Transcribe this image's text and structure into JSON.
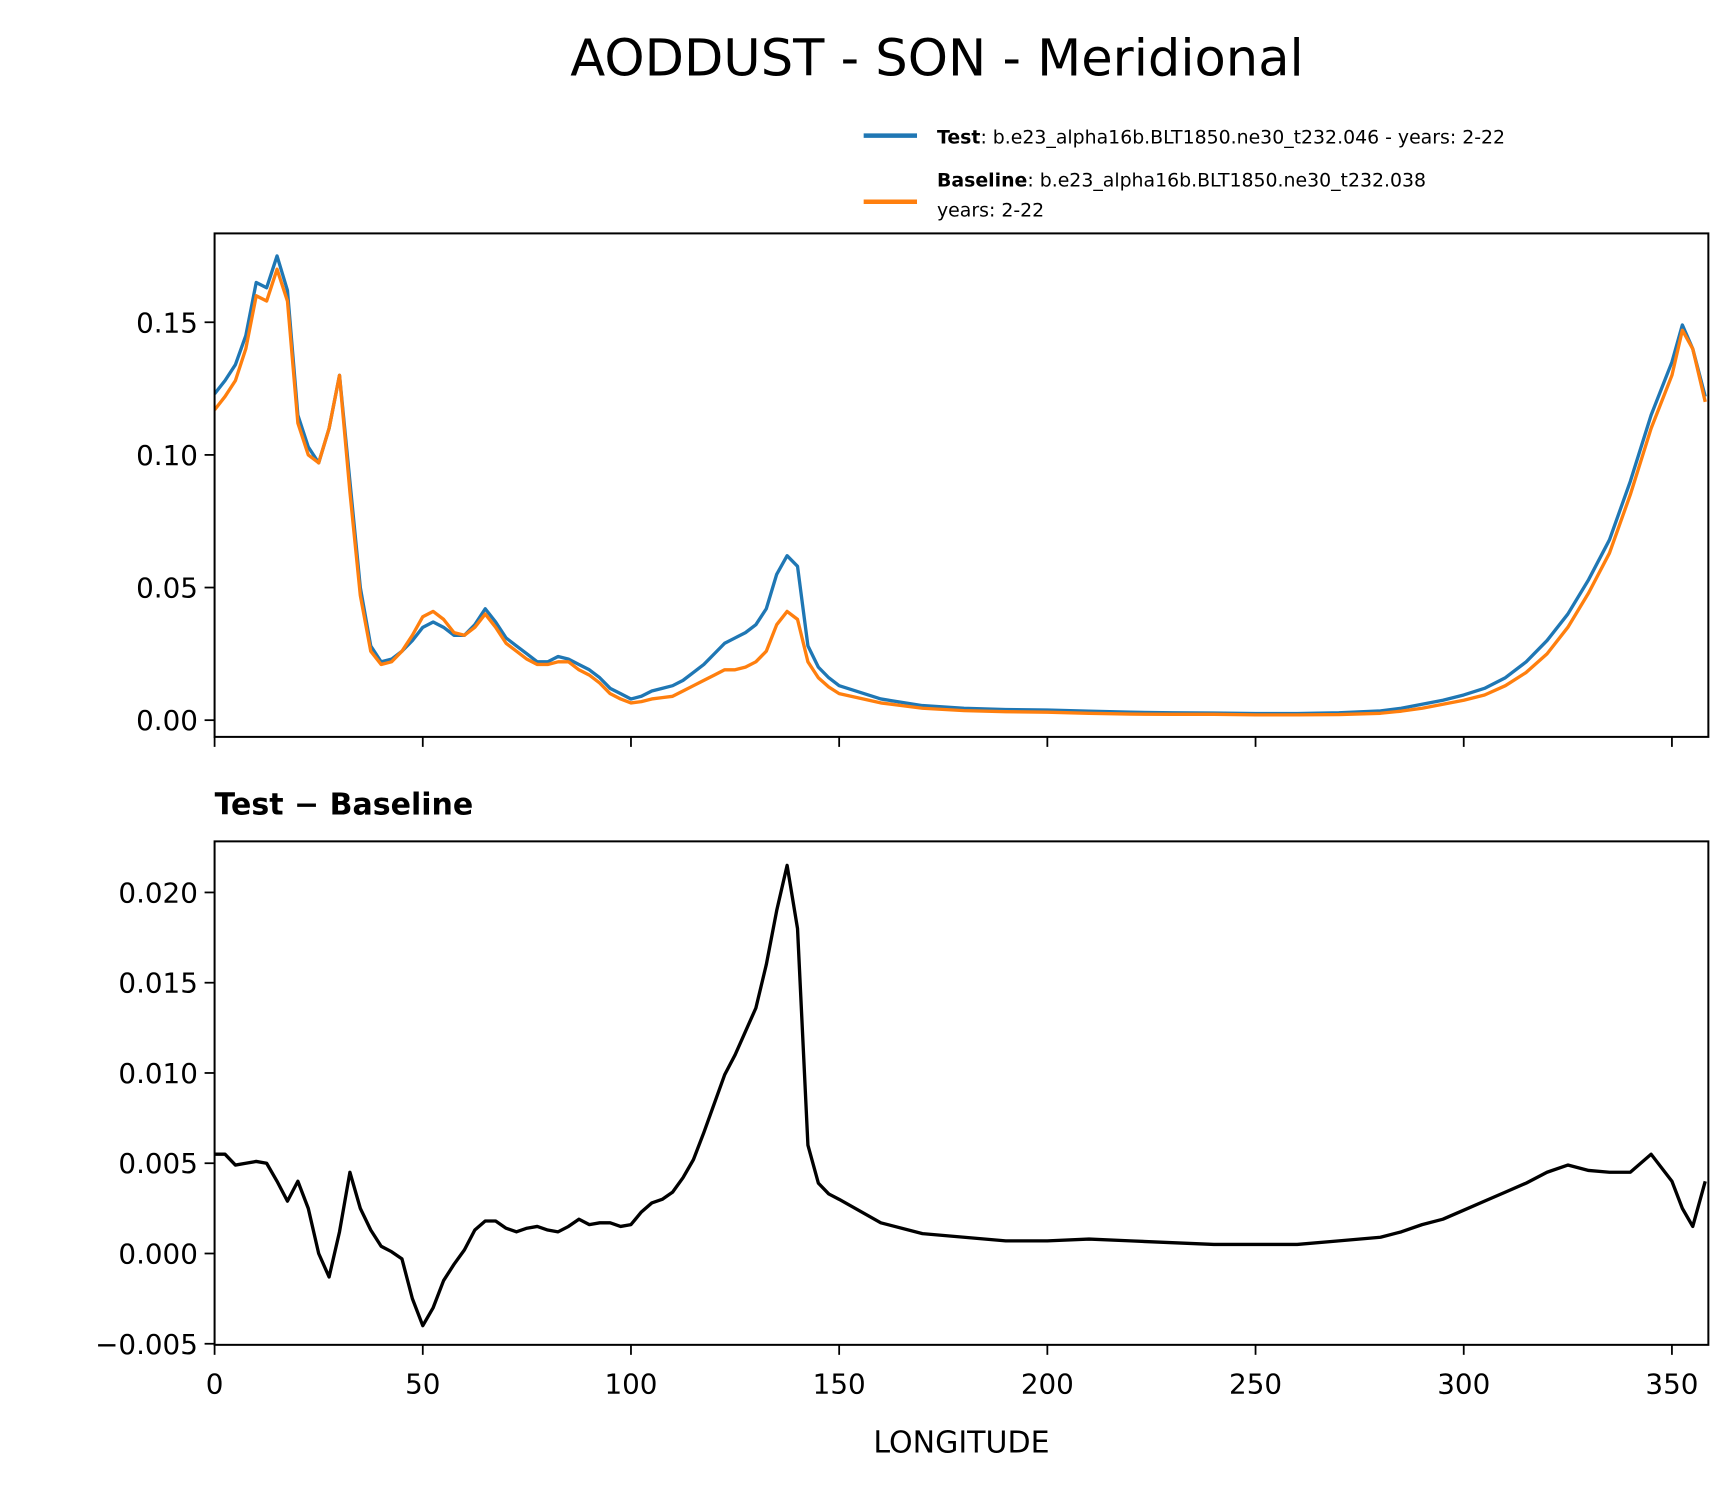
{
  "chart_data": [
    {
      "type": "line",
      "title": "AODDUST - SON - Meridional",
      "x": [
        0,
        2.5,
        5,
        7.5,
        10,
        12.5,
        15,
        17.5,
        20,
        22.5,
        25,
        27.5,
        30,
        32.5,
        35,
        37.5,
        40,
        42.5,
        45,
        47.5,
        50,
        52.5,
        55,
        57.5,
        60,
        62.5,
        65,
        67.5,
        70,
        72.5,
        75,
        77.5,
        80,
        82.5,
        85,
        87.5,
        90,
        92.5,
        95,
        97.5,
        100,
        102.5,
        105,
        107.5,
        110,
        112.5,
        115,
        117.5,
        120,
        122.5,
        125,
        127.5,
        130,
        132.5,
        135,
        137.5,
        140,
        142.5,
        145,
        147.5,
        150,
        160,
        170,
        180,
        190,
        200,
        210,
        220,
        230,
        240,
        250,
        260,
        270,
        280,
        285,
        290,
        295,
        300,
        305,
        310,
        315,
        320,
        325,
        330,
        335,
        340,
        345,
        350,
        352.5,
        355,
        358
      ],
      "series": [
        {
          "name": "Test",
          "description": [
            ": b.e23_alpha16b.BLT1850.ne30_t232.046 - years: 2-22"
          ],
          "color": "#1f77b4",
          "values": [
            0.123,
            0.128,
            0.134,
            0.145,
            0.165,
            0.163,
            0.175,
            0.162,
            0.115,
            0.103,
            0.097,
            0.11,
            0.13,
            0.09,
            0.05,
            0.028,
            0.022,
            0.023,
            0.026,
            0.03,
            0.035,
            0.037,
            0.035,
            0.032,
            0.032,
            0.036,
            0.042,
            0.037,
            0.031,
            0.028,
            0.025,
            0.022,
            0.022,
            0.024,
            0.023,
            0.021,
            0.019,
            0.016,
            0.012,
            0.01,
            0.008,
            0.009,
            0.011,
            0.012,
            0.013,
            0.015,
            0.018,
            0.021,
            0.025,
            0.029,
            0.031,
            0.033,
            0.036,
            0.042,
            0.055,
            0.062,
            0.058,
            0.028,
            0.02,
            0.016,
            0.013,
            0.008,
            0.0055,
            0.0045,
            0.004,
            0.0038,
            0.0034,
            0.003,
            0.0028,
            0.0027,
            0.0025,
            0.0025,
            0.0028,
            0.0035,
            0.0045,
            0.006,
            0.0075,
            0.0095,
            0.012,
            0.016,
            0.022,
            0.03,
            0.04,
            0.053,
            0.068,
            0.09,
            0.115,
            0.135,
            0.149,
            0.14,
            0.122
          ]
        },
        {
          "name": "Baseline",
          "description": [
            ": b.e23_alpha16b.BLT1850.ne30_t232.038",
            "years: 2-22"
          ],
          "color": "#ff7f0e",
          "values": [
            0.117,
            0.122,
            0.128,
            0.14,
            0.16,
            0.158,
            0.17,
            0.158,
            0.112,
            0.1,
            0.097,
            0.11,
            0.13,
            0.086,
            0.047,
            0.026,
            0.021,
            0.022,
            0.026,
            0.032,
            0.039,
            0.041,
            0.038,
            0.033,
            0.032,
            0.035,
            0.04,
            0.035,
            0.029,
            0.026,
            0.023,
            0.021,
            0.021,
            0.022,
            0.022,
            0.019,
            0.017,
            0.014,
            0.01,
            0.008,
            0.0065,
            0.007,
            0.008,
            0.0085,
            0.009,
            0.011,
            0.013,
            0.015,
            0.017,
            0.019,
            0.019,
            0.02,
            0.022,
            0.026,
            0.036,
            0.041,
            0.038,
            0.022,
            0.016,
            0.0125,
            0.01,
            0.0065,
            0.0045,
            0.0036,
            0.0032,
            0.003,
            0.0026,
            0.0023,
            0.0022,
            0.0022,
            0.002,
            0.002,
            0.0021,
            0.0026,
            0.0034,
            0.0045,
            0.006,
            0.0075,
            0.0095,
            0.013,
            0.018,
            0.025,
            0.035,
            0.048,
            0.063,
            0.085,
            0.11,
            0.13,
            0.147,
            0.14,
            0.12
          ]
        }
      ],
      "xlim": [
        0,
        358.75
      ],
      "xticks": [
        0,
        50,
        100,
        150,
        200,
        250,
        300,
        350
      ],
      "show_xtick_labels": false,
      "ylim": [
        -0.0063,
        0.1835
      ],
      "yticks": [
        {
          "value": 0,
          "label": "0.00"
        },
        0.05,
        {
          "value": 0.1,
          "label": "0.10"
        },
        0.15
      ]
    },
    {
      "type": "line",
      "title": "Test − Baseline",
      "x_label": "LONGITUDE",
      "x": [
        0,
        2.5,
        5,
        7.5,
        10,
        12.5,
        15,
        17.5,
        20,
        22.5,
        25,
        27.5,
        30,
        32.5,
        35,
        37.5,
        40,
        42.5,
        45,
        47.5,
        50,
        52.5,
        55,
        57.5,
        60,
        62.5,
        65,
        67.5,
        70,
        72.5,
        75,
        77.5,
        80,
        82.5,
        85,
        87.5,
        90,
        92.5,
        95,
        97.5,
        100,
        102.5,
        105,
        107.5,
        110,
        112.5,
        115,
        117.5,
        120,
        122.5,
        125,
        127.5,
        130,
        132.5,
        135,
        137.5,
        140,
        142.5,
        145,
        147.5,
        150,
        160,
        170,
        180,
        190,
        200,
        210,
        220,
        230,
        240,
        250,
        260,
        270,
        280,
        285,
        290,
        295,
        300,
        305,
        310,
        315,
        320,
        325,
        330,
        335,
        340,
        345,
        350,
        352.5,
        355,
        358
      ],
      "series": [
        {
          "color": "#000000",
          "values": [
            0.0055,
            0.0055,
            0.0049,
            0.005,
            0.0051,
            0.005,
            0.004,
            0.0029,
            0.004,
            0.0025,
            0.0,
            -0.0013,
            0.0012,
            0.0045,
            0.0025,
            0.0013,
            0.0004,
            0.0001,
            -0.0003,
            -0.0025,
            -0.004,
            -0.003,
            -0.0015,
            -0.0006,
            0.0002,
            0.0013,
            0.0018,
            0.0018,
            0.0014,
            0.0012,
            0.0014,
            0.0015,
            0.0013,
            0.0012,
            0.0015,
            0.0019,
            0.0016,
            0.0017,
            0.0017,
            0.0015,
            0.0016,
            0.0023,
            0.0028,
            0.003,
            0.0034,
            0.0042,
            0.0052,
            0.0067,
            0.0083,
            0.0099,
            0.011,
            0.0123,
            0.0136,
            0.016,
            0.019,
            0.0215,
            0.018,
            0.006,
            0.0039,
            0.0033,
            0.003,
            0.0017,
            0.0011,
            0.0009,
            0.0007,
            0.0007,
            0.0008,
            0.0007,
            0.0006,
            0.0005,
            0.0005,
            0.0005,
            0.0007,
            0.0009,
            0.0012,
            0.0016,
            0.0019,
            0.0024,
            0.0029,
            0.0034,
            0.0039,
            0.0045,
            0.0049,
            0.0046,
            0.0045,
            0.0045,
            0.0055,
            0.004,
            0.0025,
            0.0015,
            0.004
          ]
        }
      ],
      "xlim": [
        0,
        358.75
      ],
      "xticks": [
        0,
        50,
        100,
        150,
        200,
        250,
        300,
        350
      ],
      "show_xtick_labels": true,
      "ylim": [
        -0.00506,
        0.02283
      ],
      "yticks": [
        {
          "value": -0.005,
          "label": "−0.005"
        },
        {
          "value": 0,
          "label": "0.000"
        },
        {
          "value": 0.005,
          "label": "0.005"
        },
        {
          "value": 0.01,
          "label": "0.010"
        },
        {
          "value": 0.015,
          "label": "0.015"
        },
        {
          "value": 0.02,
          "label": "0.020"
        }
      ]
    }
  ]
}
